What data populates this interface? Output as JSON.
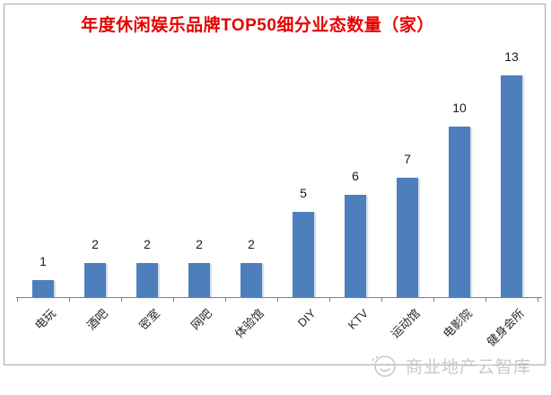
{
  "title": {
    "text": "年度休闲娱乐品牌TOP50细分业态数量（家）",
    "color": "#e60000"
  },
  "chart_data": {
    "type": "bar",
    "title": "年度休闲娱乐品牌TOP50细分业态数量（家）",
    "categories": [
      "电玩",
      "酒吧",
      "密室",
      "网吧",
      "体验馆",
      "DIY",
      "KTV",
      "运动馆",
      "电影院",
      "健身会所"
    ],
    "values": [
      1,
      2,
      2,
      2,
      2,
      5,
      6,
      7,
      10,
      13
    ],
    "xlabel": "",
    "ylabel": "",
    "ylim": [
      0,
      13
    ],
    "grid": false,
    "legend": false,
    "bar_color": "#4d7fbc",
    "value_label_color": "#1a1a1a",
    "axis_color": "#808080",
    "category_label_color": "#262626"
  },
  "watermark": {
    "text": "商业地产云智库",
    "icon": "smiley-cloud-logo-icon",
    "color": "#c9c9c9"
  }
}
